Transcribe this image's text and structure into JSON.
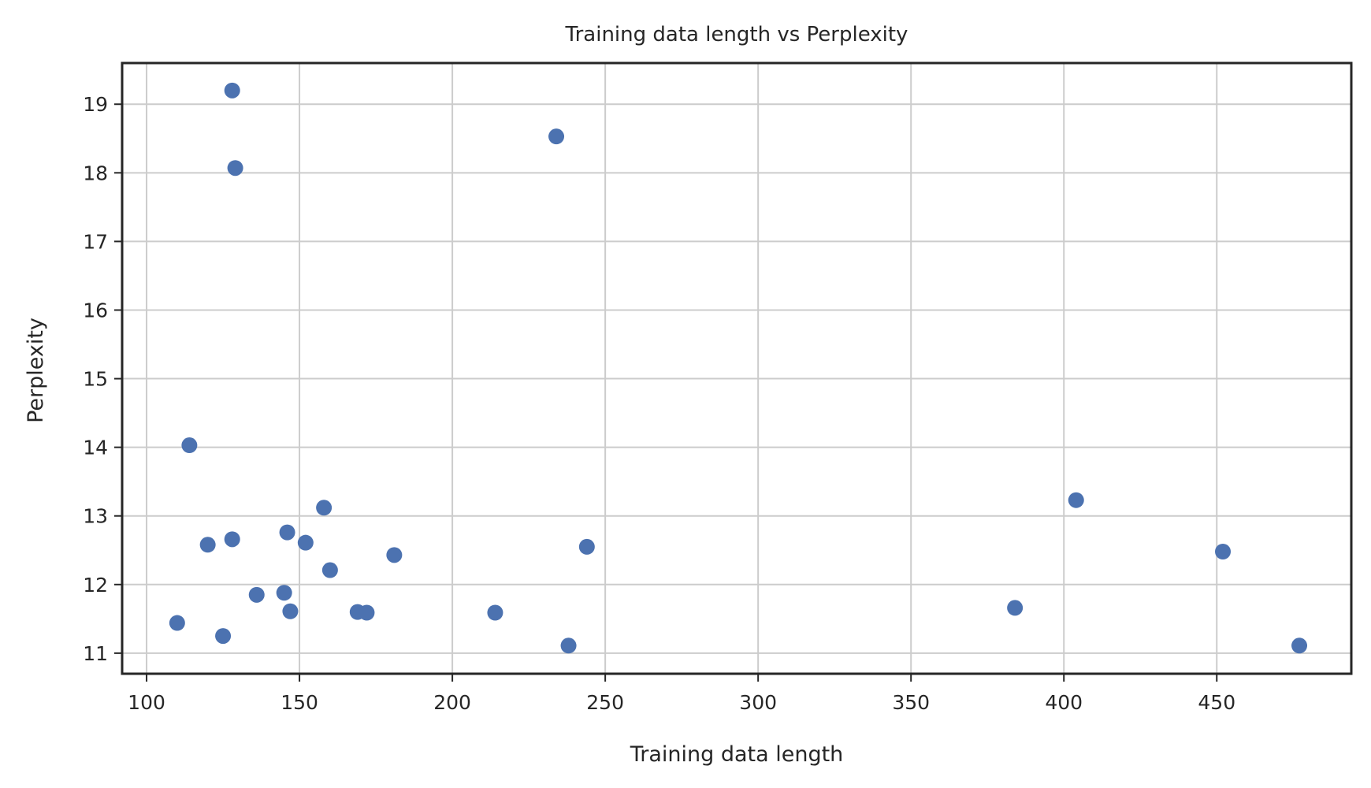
{
  "chart_data": {
    "type": "scatter",
    "title": "Training data length vs Perplexity",
    "xlabel": "Training data length",
    "ylabel": "Perplexity",
    "xlim": [
      92,
      494
    ],
    "ylim": [
      10.7,
      19.6
    ],
    "xticks": [
      100,
      150,
      200,
      250,
      300,
      350,
      400,
      450
    ],
    "yticks": [
      11,
      12,
      13,
      14,
      15,
      16,
      17,
      18,
      19
    ],
    "grid": true,
    "marker_color": "#4c72b0",
    "points": [
      {
        "x": 128,
        "y": 19.2
      },
      {
        "x": 129,
        "y": 18.07
      },
      {
        "x": 234,
        "y": 18.53
      },
      {
        "x": 114,
        "y": 14.03
      },
      {
        "x": 158,
        "y": 13.12
      },
      {
        "x": 404,
        "y": 13.23
      },
      {
        "x": 146,
        "y": 12.76
      },
      {
        "x": 128,
        "y": 12.66
      },
      {
        "x": 120,
        "y": 12.58
      },
      {
        "x": 152,
        "y": 12.61
      },
      {
        "x": 244,
        "y": 12.55
      },
      {
        "x": 181,
        "y": 12.43
      },
      {
        "x": 452,
        "y": 12.48
      },
      {
        "x": 160,
        "y": 12.21
      },
      {
        "x": 145,
        "y": 11.88
      },
      {
        "x": 136,
        "y": 11.85
      },
      {
        "x": 384,
        "y": 11.66
      },
      {
        "x": 147,
        "y": 11.61
      },
      {
        "x": 169,
        "y": 11.6
      },
      {
        "x": 172,
        "y": 11.59
      },
      {
        "x": 214,
        "y": 11.59
      },
      {
        "x": 110,
        "y": 11.44
      },
      {
        "x": 125,
        "y": 11.25
      },
      {
        "x": 238,
        "y": 11.11
      },
      {
        "x": 477,
        "y": 11.11
      }
    ]
  }
}
